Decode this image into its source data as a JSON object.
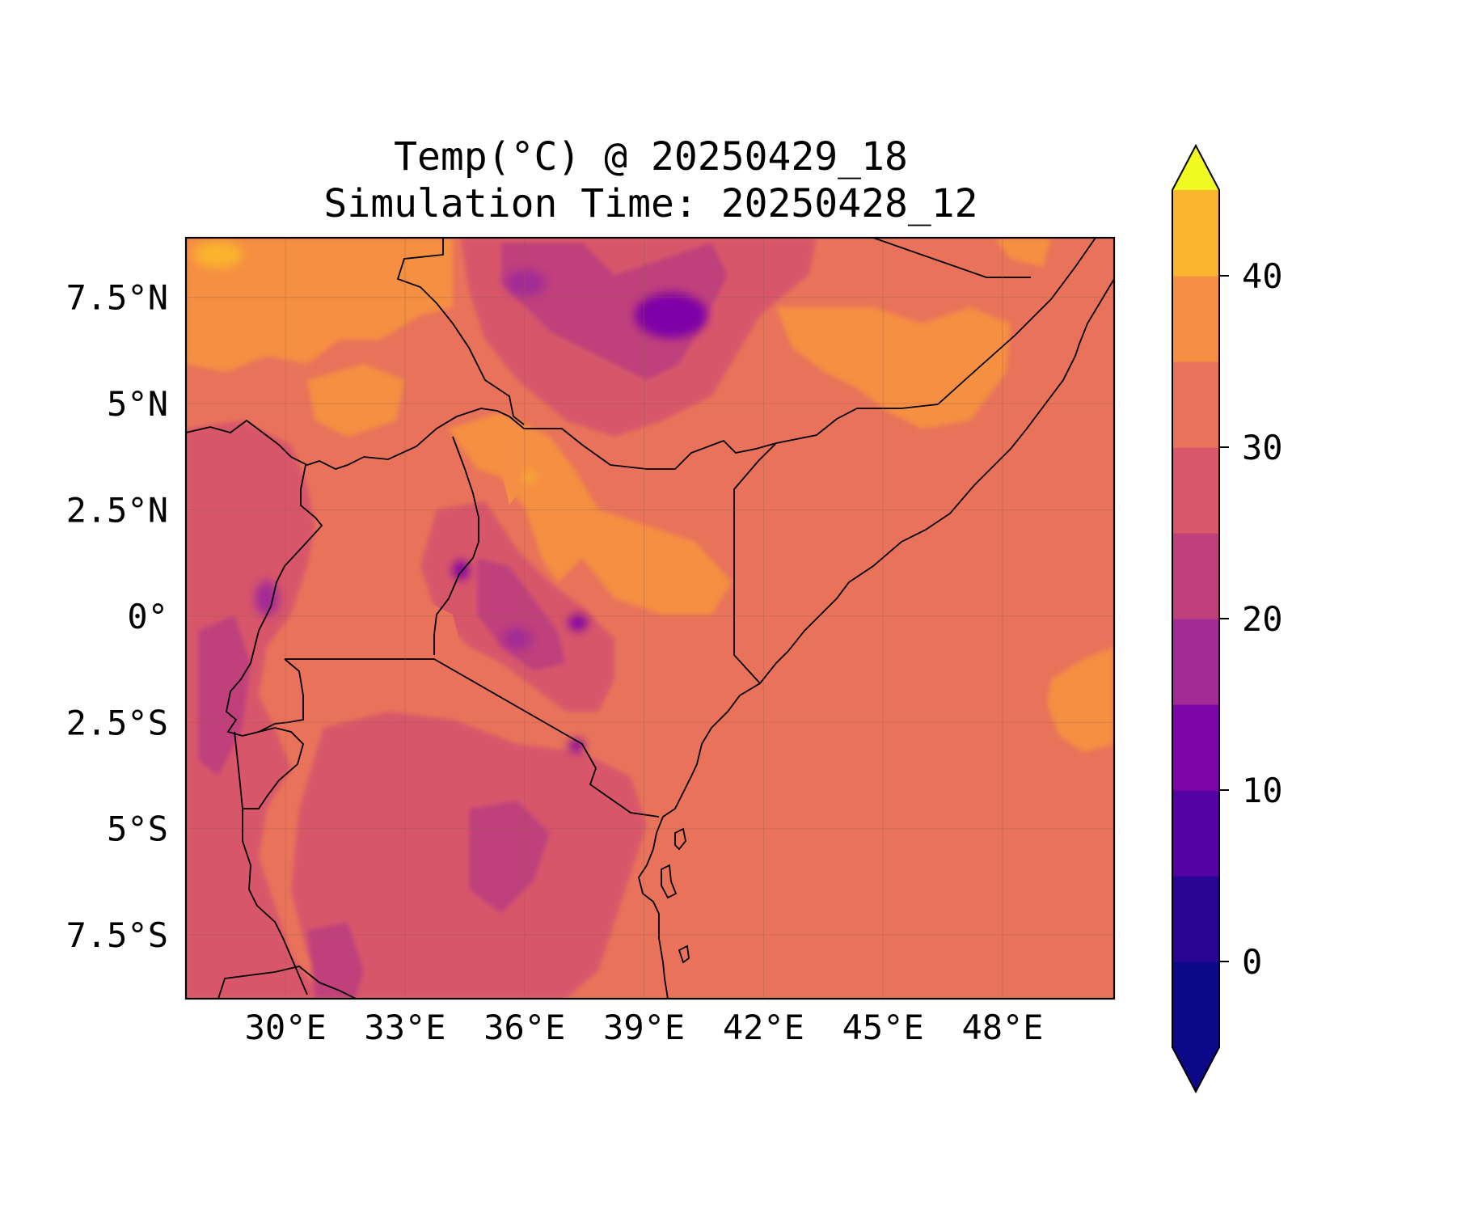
{
  "title_line1": "Temp(°C) @ 20250429_18",
  "title_line2": "Simulation Time: 20250428_12",
  "map": {
    "lon_range": [
      27.5,
      50.8
    ],
    "lat_range": [
      -9,
      8.9
    ],
    "grid": true,
    "x_ticks": [
      {
        "value": 30,
        "label": "30°E"
      },
      {
        "value": 33,
        "label": "33°E"
      },
      {
        "value": 36,
        "label": "36°E"
      },
      {
        "value": 39,
        "label": "39°E"
      },
      {
        "value": 42,
        "label": "42°E"
      },
      {
        "value": 45,
        "label": "45°E"
      },
      {
        "value": 48,
        "label": "48°E"
      }
    ],
    "y_ticks": [
      {
        "value": 7.5,
        "label": "7.5°N"
      },
      {
        "value": 5,
        "label": "5°N"
      },
      {
        "value": 2.5,
        "label": "2.5°N"
      },
      {
        "value": 0,
        "label": "0°"
      },
      {
        "value": -2.5,
        "label": "2.5°S"
      },
      {
        "value": -5,
        "label": "5°S"
      },
      {
        "value": -7.5,
        "label": "7.5°S"
      }
    ],
    "ocean_fill": "#e8735a"
  },
  "colorbar": {
    "min": -5,
    "max": 45,
    "extend": "both",
    "levels": [
      -5,
      0,
      5,
      10,
      15,
      20,
      25,
      30,
      35,
      40,
      45
    ],
    "colors": [
      "#0d0887",
      "#2a0593",
      "#5402a3",
      "#7e03a8",
      "#a22b97",
      "#c0407c",
      "#d8576b",
      "#e8735a",
      "#f58f43",
      "#fbb42f",
      "#f2e42a"
    ],
    "under_color": "#0d0887",
    "over_color": "#f0f921",
    "ticks": [
      {
        "value": 0,
        "label": "0"
      },
      {
        "value": 10,
        "label": "10"
      },
      {
        "value": 20,
        "label": "20"
      },
      {
        "value": 30,
        "label": "30"
      },
      {
        "value": 40,
        "label": "40"
      }
    ]
  }
}
